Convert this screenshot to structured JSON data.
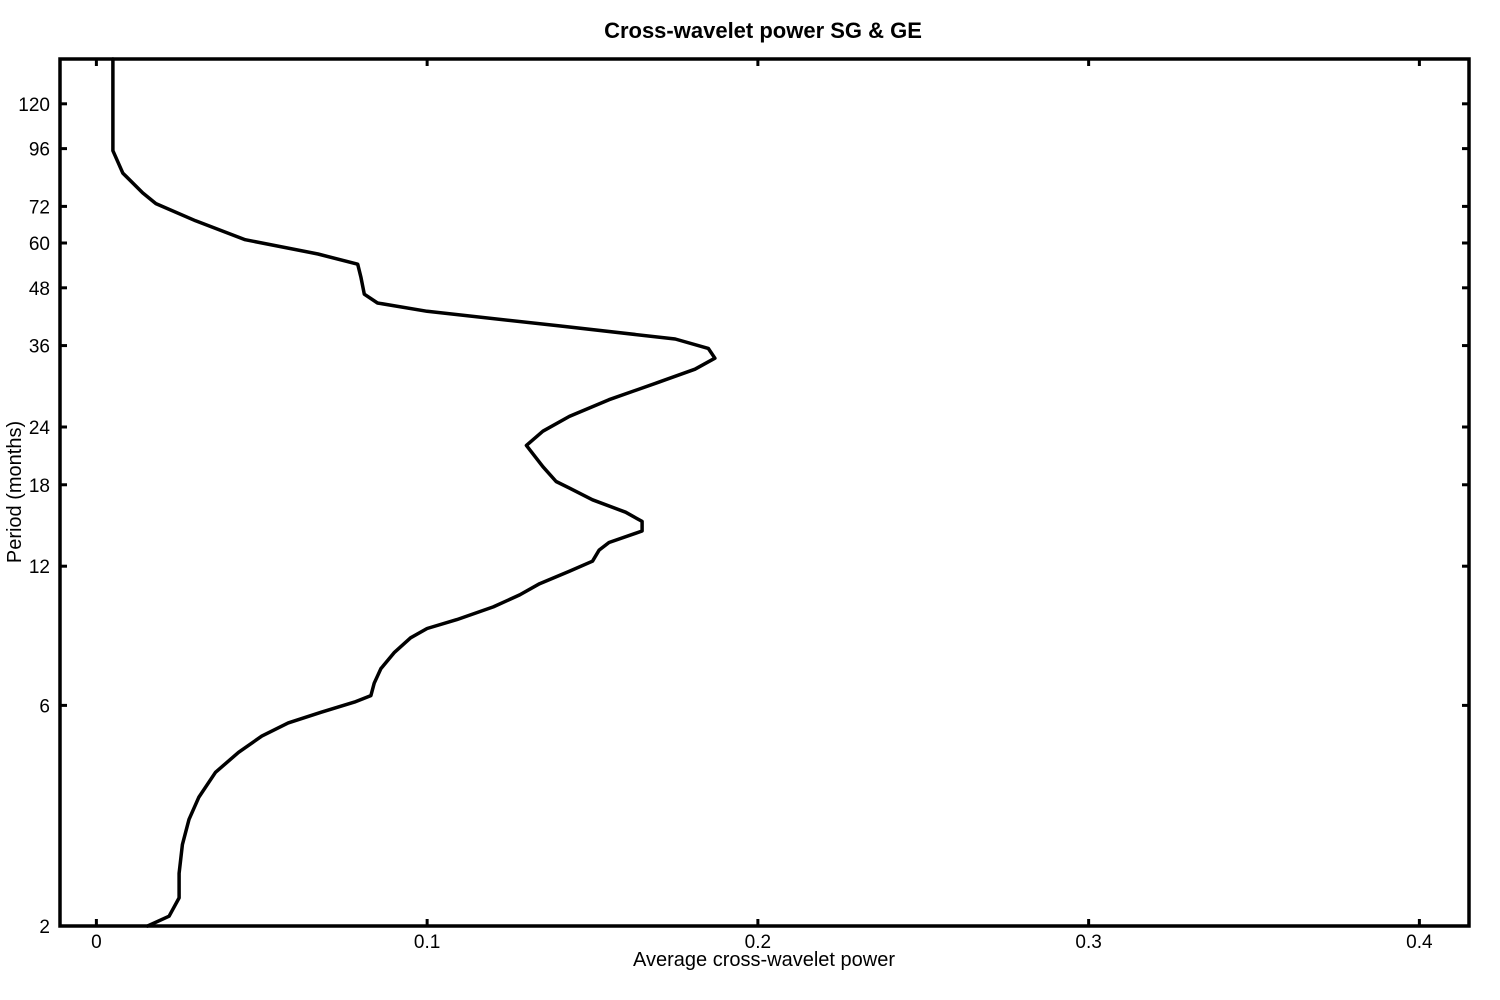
{
  "chart_data": {
    "type": "line",
    "title": "Cross-wavelet power SG & GE",
    "xlabel": "Average cross-wavelet power",
    "ylabel": "Period (months)",
    "xlim": [
      -0.011,
      0.415
    ],
    "ylim": [
      2,
      150
    ],
    "yscale": "log2",
    "x_ticks": [
      0,
      0.1,
      0.2,
      0.3,
      0.4
    ],
    "x_tick_labels": [
      "0",
      "0.1",
      "0.2",
      "0.3",
      "0.4"
    ],
    "y_ticks": [
      2,
      6,
      12,
      18,
      24,
      36,
      48,
      60,
      72,
      96,
      120
    ],
    "y_tick_labels": [
      "2",
      "6",
      "12",
      "18",
      "24",
      "36",
      "48",
      "60",
      "72",
      "96",
      "120"
    ],
    "line_color": "#000000",
    "grid": false,
    "series": [
      {
        "x": [
          0.0155,
          0.022,
          0.025,
          0.025,
          0.026,
          0.028,
          0.031,
          0.036,
          0.043,
          0.05,
          0.058,
          0.068,
          0.078,
          0.083,
          0.084,
          0.086,
          0.09,
          0.095,
          0.1,
          0.109,
          0.12,
          0.128,
          0.134,
          0.143,
          0.15,
          0.152,
          0.155,
          0.165,
          0.165,
          0.16,
          0.15,
          0.143,
          0.139,
          0.135,
          0.13,
          0.135,
          0.143,
          0.155,
          0.17,
          0.181,
          0.187,
          0.185,
          0.175,
          0.14,
          0.1,
          0.085,
          0.081,
          0.08,
          0.079,
          0.067,
          0.045,
          0.03,
          0.018,
          0.014,
          0.008,
          0.005,
          0.005,
          0.005,
          0.005,
          0.005,
          0.005
        ],
        "y": [
          2,
          2.1,
          2.3,
          2.6,
          3.0,
          3.4,
          3.8,
          4.3,
          4.75,
          5.15,
          5.5,
          5.8,
          6.1,
          6.3,
          6.7,
          7.2,
          7.8,
          8.4,
          8.8,
          9.2,
          9.8,
          10.4,
          11.0,
          11.7,
          12.3,
          13.0,
          13.5,
          14.3,
          15.0,
          15.7,
          16.7,
          17.7,
          18.3,
          19.7,
          21.9,
          23.5,
          25.3,
          27.5,
          30.0,
          32.0,
          33.8,
          35.5,
          37.2,
          39.7,
          42.7,
          44.5,
          46.5,
          50.5,
          54.0,
          56.8,
          61.0,
          67.0,
          73.0,
          77.0,
          85.0,
          95.0,
          103.0,
          115.0,
          125.0,
          140.0,
          150.0
        ]
      }
    ]
  }
}
